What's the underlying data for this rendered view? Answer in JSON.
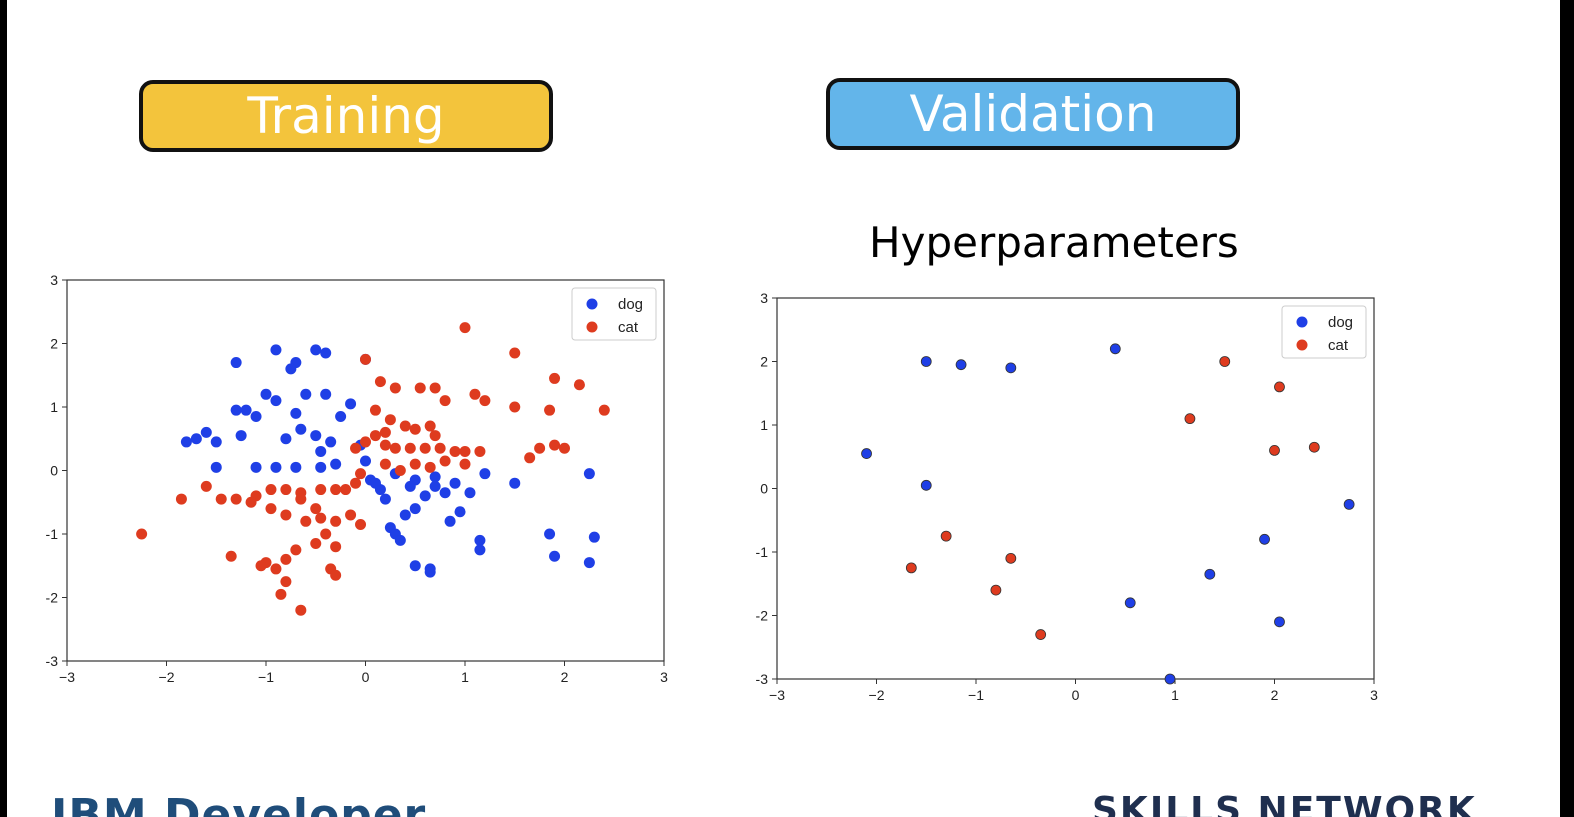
{
  "slide": {
    "training_label": "Training",
    "validation_label": "Validation",
    "hyperparameters_label": "Hyperparameters",
    "footer_left": "IBM Developer",
    "footer_right": "SKILLS NETWORK"
  },
  "colors": {
    "training": "#f3c43c",
    "validation": "#63b5ea",
    "dog": "#1f3fe6",
    "cat": "#de3b1f"
  },
  "chart_data": [
    {
      "type": "scatter",
      "title": "",
      "xlim": [
        -3,
        3
      ],
      "ylim": [
        -3,
        3
      ],
      "xticks": [
        "−3",
        "−2",
        "−1",
        "0",
        "1",
        "2",
        "3"
      ],
      "yticks": [
        "-3",
        "-2",
        "-1",
        "0",
        "1",
        "2",
        "3"
      ],
      "legend": "top-right",
      "series": [
        {
          "name": "dog",
          "color": "#1f3fe6",
          "points": [
            [
              -0.9,
              1.9
            ],
            [
              -0.5,
              1.9
            ],
            [
              -0.4,
              1.85
            ],
            [
              -0.7,
              1.7
            ],
            [
              -0.75,
              1.6
            ],
            [
              -1.3,
              1.7
            ],
            [
              0.0,
              1.75
            ],
            [
              -1.0,
              1.2
            ],
            [
              -0.9,
              1.1
            ],
            [
              -0.6,
              1.2
            ],
            [
              -0.4,
              1.2
            ],
            [
              -1.2,
              0.95
            ],
            [
              -1.1,
              0.85
            ],
            [
              -1.3,
              0.95
            ],
            [
              -0.7,
              0.9
            ],
            [
              -0.25,
              0.85
            ],
            [
              -0.15,
              1.05
            ],
            [
              -1.6,
              0.6
            ],
            [
              -1.7,
              0.5
            ],
            [
              -1.8,
              0.45
            ],
            [
              -1.5,
              0.45
            ],
            [
              -1.25,
              0.55
            ],
            [
              -0.8,
              0.5
            ],
            [
              -0.65,
              0.65
            ],
            [
              -0.5,
              0.55
            ],
            [
              -0.35,
              0.45
            ],
            [
              -0.45,
              0.3
            ],
            [
              -1.5,
              0.05
            ],
            [
              -1.1,
              0.05
            ],
            [
              -0.9,
              0.05
            ],
            [
              -0.7,
              0.05
            ],
            [
              -0.45,
              0.05
            ],
            [
              -0.3,
              0.1
            ],
            [
              -0.05,
              0.4
            ],
            [
              0.0,
              0.15
            ],
            [
              0.05,
              -0.15
            ],
            [
              0.15,
              -0.3
            ],
            [
              0.3,
              -0.05
            ],
            [
              0.5,
              -0.15
            ],
            [
              0.6,
              -0.4
            ],
            [
              0.7,
              -0.1
            ],
            [
              0.8,
              -0.35
            ],
            [
              0.9,
              -0.2
            ],
            [
              1.05,
              -0.35
            ],
            [
              1.2,
              -0.05
            ],
            [
              0.25,
              -0.9
            ],
            [
              0.3,
              -1.0
            ],
            [
              0.4,
              -0.7
            ],
            [
              0.5,
              -0.6
            ],
            [
              0.35,
              -1.1
            ],
            [
              0.5,
              -1.5
            ],
            [
              0.65,
              -1.55
            ],
            [
              0.65,
              -1.6
            ],
            [
              1.15,
              -1.1
            ],
            [
              1.15,
              -1.25
            ],
            [
              1.5,
              -0.2
            ],
            [
              1.85,
              -1.0
            ],
            [
              1.9,
              -1.35
            ],
            [
              2.25,
              -1.45
            ],
            [
              2.3,
              -1.05
            ],
            [
              2.25,
              -0.05
            ],
            [
              0.85,
              -0.8
            ],
            [
              0.95,
              -0.65
            ],
            [
              0.7,
              -0.25
            ],
            [
              0.45,
              -0.25
            ],
            [
              0.2,
              -0.45
            ],
            [
              0.1,
              -0.2
            ]
          ]
        },
        {
          "name": "cat",
          "color": "#de3b1f",
          "points": [
            [
              1.0,
              2.25
            ],
            [
              1.5,
              1.85
            ],
            [
              0.0,
              1.75
            ],
            [
              0.15,
              1.4
            ],
            [
              0.3,
              1.3
            ],
            [
              0.55,
              1.3
            ],
            [
              0.7,
              1.3
            ],
            [
              0.8,
              1.1
            ],
            [
              1.1,
              1.2
            ],
            [
              1.2,
              1.1
            ],
            [
              1.5,
              1.0
            ],
            [
              1.9,
              1.45
            ],
            [
              2.15,
              1.35
            ],
            [
              2.4,
              0.95
            ],
            [
              1.85,
              0.95
            ],
            [
              0.1,
              0.95
            ],
            [
              0.25,
              0.8
            ],
            [
              0.4,
              0.7
            ],
            [
              0.5,
              0.65
            ],
            [
              0.65,
              0.7
            ],
            [
              0.7,
              0.55
            ],
            [
              0.2,
              0.6
            ],
            [
              0.1,
              0.55
            ],
            [
              0.0,
              0.45
            ],
            [
              -0.1,
              0.35
            ],
            [
              0.2,
              0.4
            ],
            [
              0.3,
              0.35
            ],
            [
              0.45,
              0.35
            ],
            [
              0.6,
              0.35
            ],
            [
              0.75,
              0.35
            ],
            [
              0.9,
              0.3
            ],
            [
              1.0,
              0.3
            ],
            [
              1.15,
              0.3
            ],
            [
              1.9,
              0.4
            ],
            [
              2.0,
              0.35
            ],
            [
              1.75,
              0.35
            ],
            [
              1.65,
              0.2
            ],
            [
              0.5,
              0.1
            ],
            [
              0.65,
              0.05
            ],
            [
              0.8,
              0.15
            ],
            [
              1.0,
              0.1
            ],
            [
              0.35,
              0.0
            ],
            [
              0.2,
              0.1
            ],
            [
              -0.05,
              -0.05
            ],
            [
              -0.1,
              -0.2
            ],
            [
              -0.2,
              -0.3
            ],
            [
              -0.3,
              -0.3
            ],
            [
              -0.45,
              -0.3
            ],
            [
              -0.65,
              -0.35
            ],
            [
              -0.8,
              -0.3
            ],
            [
              -0.95,
              -0.3
            ],
            [
              -1.1,
              -0.4
            ],
            [
              -1.3,
              -0.45
            ],
            [
              -1.45,
              -0.45
            ],
            [
              -1.6,
              -0.25
            ],
            [
              -1.85,
              -0.45
            ],
            [
              -1.15,
              -0.5
            ],
            [
              -0.95,
              -0.6
            ],
            [
              -0.8,
              -0.7
            ],
            [
              -0.6,
              -0.8
            ],
            [
              -0.45,
              -0.75
            ],
            [
              -0.3,
              -0.8
            ],
            [
              -0.15,
              -0.7
            ],
            [
              -0.05,
              -0.85
            ],
            [
              -0.4,
              -1.0
            ],
            [
              -0.5,
              -1.15
            ],
            [
              -0.7,
              -1.25
            ],
            [
              -0.8,
              -1.4
            ],
            [
              -0.9,
              -1.55
            ],
            [
              -1.0,
              -1.45
            ],
            [
              -1.05,
              -1.5
            ],
            [
              -0.3,
              -1.2
            ],
            [
              -0.35,
              -1.55
            ],
            [
              -0.3,
              -1.65
            ],
            [
              -0.8,
              -1.75
            ],
            [
              -0.85,
              -1.95
            ],
            [
              -0.65,
              -2.2
            ],
            [
              -1.35,
              -1.35
            ],
            [
              -2.25,
              -1.0
            ],
            [
              -0.65,
              -0.45
            ],
            [
              -0.5,
              -0.6
            ]
          ]
        }
      ]
    },
    {
      "type": "scatter",
      "title": "Hyperparameters",
      "xlim": [
        -3,
        3
      ],
      "ylim": [
        -3,
        3
      ],
      "xticks": [
        "−3",
        "−2",
        "−1",
        "0",
        "1",
        "2",
        "3"
      ],
      "yticks": [
        "-3",
        "-2",
        "-1",
        "0",
        "1",
        "2",
        "3"
      ],
      "legend": "top-right",
      "series": [
        {
          "name": "dog",
          "color": "#1f3fe6",
          "points": [
            [
              -1.5,
              2.0
            ],
            [
              -1.15,
              1.95
            ],
            [
              -0.65,
              1.9
            ],
            [
              0.4,
              2.2
            ],
            [
              -2.1,
              0.55
            ],
            [
              -1.5,
              0.05
            ],
            [
              2.75,
              -0.25
            ],
            [
              1.9,
              -0.8
            ],
            [
              1.35,
              -1.35
            ],
            [
              0.55,
              -1.8
            ],
            [
              2.05,
              -2.1
            ],
            [
              0.95,
              -3.0
            ]
          ]
        },
        {
          "name": "cat",
          "color": "#de3b1f",
          "points": [
            [
              1.5,
              2.0
            ],
            [
              2.05,
              1.6
            ],
            [
              1.15,
              1.1
            ],
            [
              2.0,
              0.6
            ],
            [
              2.4,
              0.65
            ],
            [
              -1.3,
              -0.75
            ],
            [
              -1.65,
              -1.25
            ],
            [
              -0.65,
              -1.1
            ],
            [
              -0.8,
              -1.6
            ],
            [
              -0.35,
              -2.3
            ]
          ]
        }
      ]
    }
  ]
}
